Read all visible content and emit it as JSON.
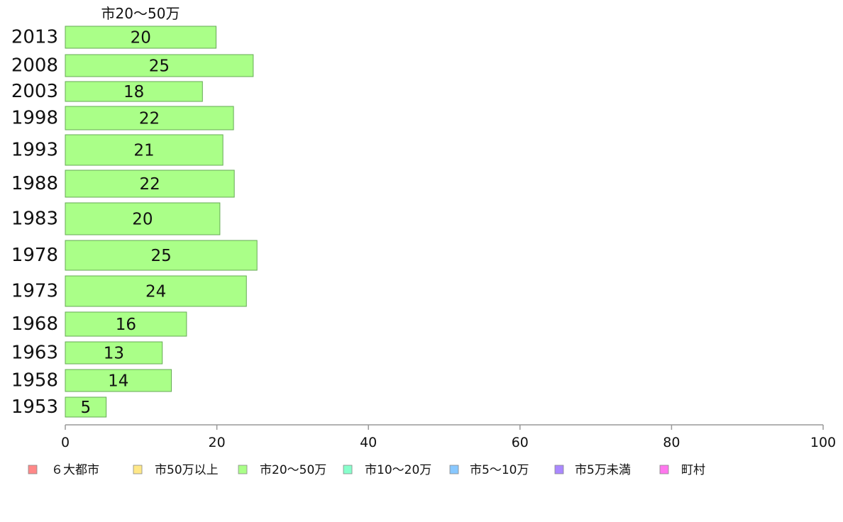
{
  "chart_data": {
    "type": "bar",
    "orientation": "horizontal",
    "series_title": "市20〜50万",
    "categories": [
      "2013",
      "2008",
      "2003",
      "1998",
      "1993",
      "1988",
      "1983",
      "1978",
      "1973",
      "1968",
      "1963",
      "1958",
      "1953"
    ],
    "values": [
      19.9,
      24.8,
      18.1,
      22.2,
      20.8,
      22.3,
      20.4,
      25.3,
      23.9,
      16.0,
      12.8,
      14.0,
      5.4
    ],
    "value_labels": [
      "20",
      "25",
      "18",
      "22",
      "21",
      "22",
      "20",
      "25",
      "24",
      "16",
      "13",
      "14",
      "5"
    ],
    "xlim": [
      0,
      100
    ],
    "x_ticks": [
      "0",
      "20",
      "40",
      "60",
      "80",
      "100"
    ],
    "grid": false,
    "bar_color": "#aaff88",
    "bar_stroke": "#66aa55",
    "axis_color": "#999999",
    "legend_position": "bottom",
    "legend": [
      {
        "label": "６大都市",
        "color": "#ff8888"
      },
      {
        "label": "市50万以上",
        "color": "#ffe888"
      },
      {
        "label": "市20〜50万",
        "color": "#aaff88"
      },
      {
        "label": "市10〜20万",
        "color": "#88ffcc"
      },
      {
        "label": "市5〜10万",
        "color": "#88c8ff"
      },
      {
        "label": "市5万未満",
        "color": "#aa88ff"
      },
      {
        "label": "町村",
        "color": "#ff77ee"
      }
    ]
  }
}
